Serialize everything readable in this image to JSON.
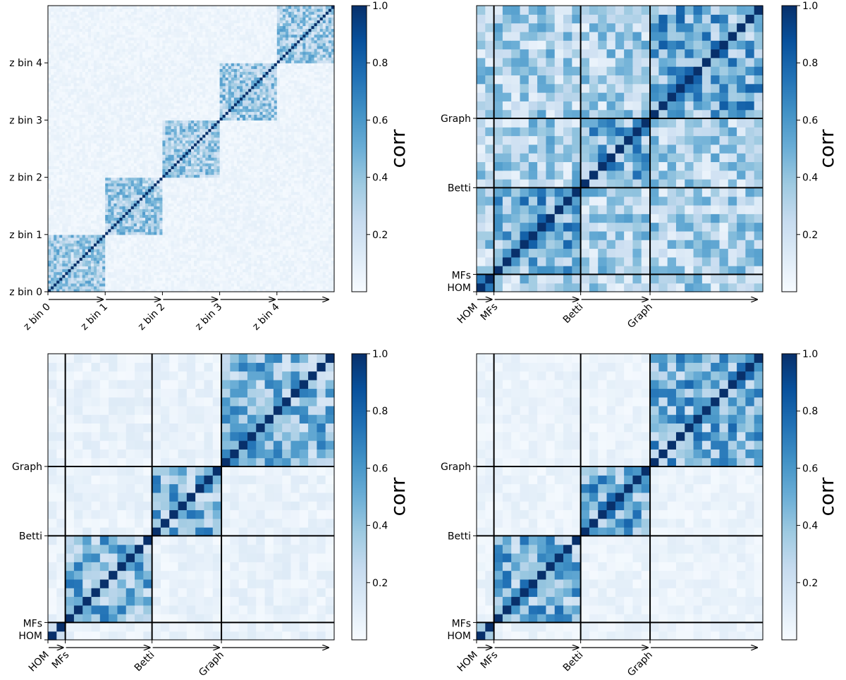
{
  "chart_data": [
    {
      "type": "heatmap",
      "panel": "top-left",
      "ticks": [
        "z bin 0",
        "z bin 1",
        "z bin 2",
        "z bin 3",
        "z bin 4"
      ],
      "group_sizes": [
        20,
        20,
        20,
        20,
        20
      ],
      "colorbar_label": "corr",
      "colorbar_ticks": [
        "0.2",
        "0.4",
        "0.6",
        "0.8",
        "1.0"
      ],
      "colorbar_range": [
        0.0,
        1.0
      ],
      "colormap": [
        "#f7fbff",
        "#deebf7",
        "#c6dbef",
        "#9ecae1",
        "#6baed6",
        "#4292c6",
        "#2171b5",
        "#08519c",
        "#08306b"
      ],
      "pattern": {
        "diag": 1.0,
        "in_block": 0.35,
        "off_block": 0.05
      }
    },
    {
      "type": "heatmap",
      "panel": "top-right",
      "ticks": [
        "HOM",
        "MFs",
        "Betti",
        "Graph"
      ],
      "group_sizes": [
        2,
        10,
        8,
        13
      ],
      "colorbar_label": "corr",
      "colorbar_ticks": [
        "0.2",
        "0.4",
        "0.6",
        "0.8",
        "1.0"
      ],
      "colorbar_range": [
        0.0,
        1.0
      ],
      "pattern": {
        "diag": 1.0,
        "in_block": 0.5,
        "off_block": 0.32
      }
    },
    {
      "type": "heatmap",
      "panel": "bottom-left",
      "ticks": [
        "HOM",
        "MFs",
        "Betti",
        "Graph"
      ],
      "group_sizes": [
        2,
        10,
        8,
        13
      ],
      "colorbar_label": "corr",
      "colorbar_ticks": [
        "0.2",
        "0.4",
        "0.6",
        "0.8",
        "1.0"
      ],
      "colorbar_range": [
        0.0,
        1.0
      ],
      "pattern": {
        "diag": 1.0,
        "in_block": 0.45,
        "off_block": 0.07
      }
    },
    {
      "type": "heatmap",
      "panel": "bottom-right",
      "ticks": [
        "HOM",
        "MFs",
        "Betti",
        "Graph"
      ],
      "group_sizes": [
        2,
        10,
        8,
        13
      ],
      "colorbar_label": "corr",
      "colorbar_ticks": [
        "0.2",
        "0.4",
        "0.6",
        "0.8",
        "1.0"
      ],
      "colorbar_range": [
        0.0,
        1.0
      ],
      "pattern": {
        "diag": 1.0,
        "in_block": 0.48,
        "off_block": 0.06
      }
    }
  ]
}
